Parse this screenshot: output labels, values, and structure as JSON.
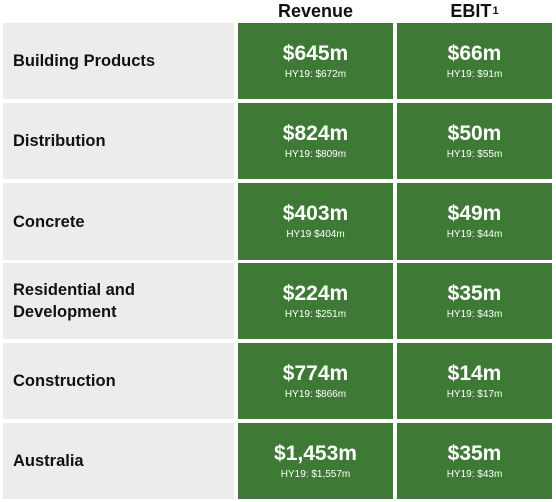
{
  "headers": {
    "revenue": "Revenue",
    "ebit": "EBIT",
    "ebit_footnote": "1"
  },
  "colors": {
    "cell_green": "#3e7a35",
    "label_bg": "#ececec"
  },
  "rows": [
    {
      "label": "Building Products",
      "revenue": "$645m",
      "revenue_prior": "HY19: $672m",
      "ebit": "$66m",
      "ebit_prior": "HY19: $91m"
    },
    {
      "label": "Distribution",
      "revenue": "$824m",
      "revenue_prior": "HY19: $809m",
      "ebit": "$50m",
      "ebit_prior": "HY19: $55m"
    },
    {
      "label": "Concrete",
      "revenue": "$403m",
      "revenue_prior": "HY19 $404m",
      "ebit": "$49m",
      "ebit_prior": "HY19: $44m"
    },
    {
      "label": "Residential and Development",
      "revenue": "$224m",
      "revenue_prior": "HY19: $251m",
      "ebit": "$35m",
      "ebit_prior": "HY19: $43m"
    },
    {
      "label": "Construction",
      "revenue": "$774m",
      "revenue_prior": "HY19: $866m",
      "ebit": "$14m",
      "ebit_prior": "HY19: $17m"
    },
    {
      "label": "Australia",
      "revenue": "$1,453m",
      "revenue_prior": "HY19: $1,557m",
      "ebit": "$35m",
      "ebit_prior": "HY19: $43m"
    }
  ]
}
